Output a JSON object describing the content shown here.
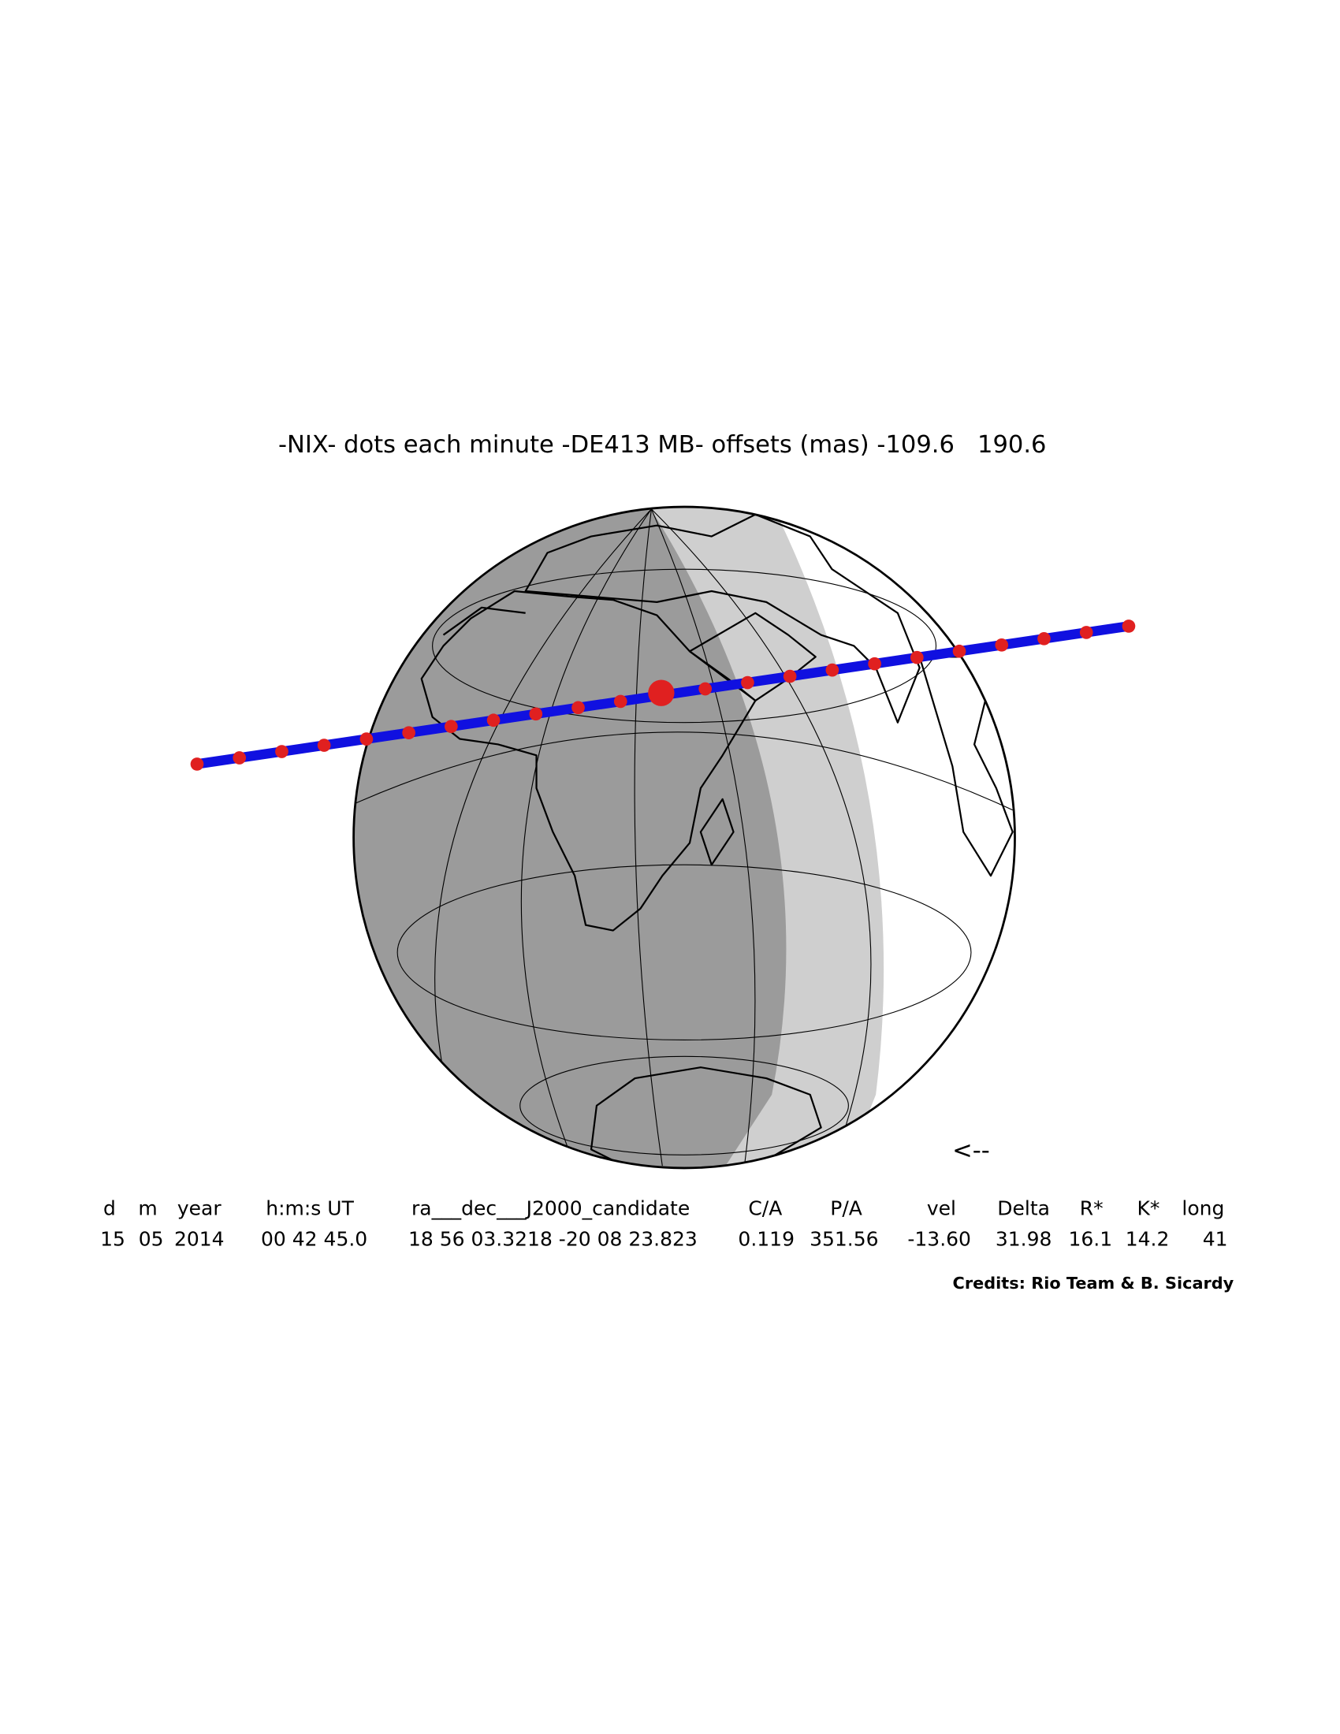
{
  "title": "-NIX- dots each minute -DE413 MB- offsets (mas) -109.6   190.6",
  "direction_arrow": "<--",
  "table": {
    "header": [
      "d",
      "m",
      "year",
      "h:m:s UT",
      "ra___dec___J2000_candidate",
      "C/A",
      "P/A",
      "vel",
      "Delta",
      "R*",
      "K*",
      "long"
    ],
    "rows": [
      [
        "15",
        "05",
        "2014",
        "00 42 45.0",
        "18 56 03.3218 -20 08 23.823",
        "0.119",
        "351.56",
        "-13.60",
        "31.98",
        "16.1",
        "14.2",
        "41"
      ]
    ]
  },
  "credits": "Credits: Rio Team & B. Sicardy"
}
